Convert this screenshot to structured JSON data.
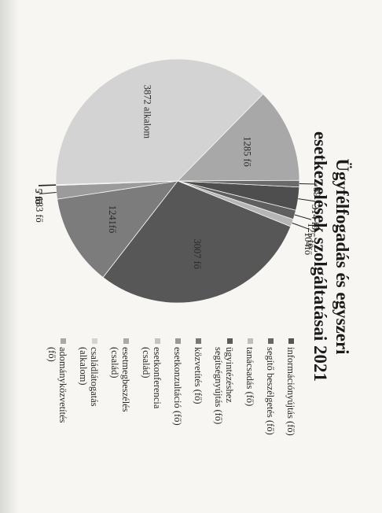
{
  "title": {
    "line1": "Ügyfélfogadás és egyszeri",
    "line2": "esetkezelések szolgáltatásai 2021"
  },
  "chart_data": {
    "type": "pie",
    "title": "Ügyfélfogadás és egyszeri esetkezelések szolgáltatásai 2021",
    "slices": [
      {
        "legend": "információnyújtás (fő)",
        "value": 314,
        "label": "314 fő",
        "color": "#4e4e4e"
      },
      {
        "legend": "segítő beszélgetés (fő)",
        "value": 125,
        "label": "125 fő",
        "color": "#5f5f5f"
      },
      {
        "legend": "tanácsadás (fő)",
        "value": 104,
        "label": "104fő",
        "color": "#b6b6b6"
      },
      {
        "legend": "ügyintézéshez segítségnyújtás (fő)",
        "value": 3007,
        "label": "3007 fő",
        "color": "#575757"
      },
      {
        "legend": "közvetítés (fő)",
        "value": 1241,
        "label": "1241fő",
        "color": "#7c7c7c"
      },
      {
        "legend": "esetkonzultáció (fő)",
        "value": 183,
        "label": "183 fő",
        "color": "#9b9b9b"
      },
      {
        "legend": "esetkonferencia (család)",
        "value": 7,
        "label": "7 fő",
        "color": "#c3c3c3"
      },
      {
        "legend": "esetmegbeszélés (család)",
        "value": 5,
        "label": "5 fő",
        "color": "#acacac"
      },
      {
        "legend": "családlátogatás (alkalom)",
        "value": 3872,
        "label": "3872 alkalom",
        "color": "#d3d3d3"
      },
      {
        "legend": "adományközvetítés (fő)",
        "value": 1285,
        "label": "1285 fő",
        "color": "#a8a8a8"
      },
      {
        "legend": "",
        "value": 89,
        "label": "89",
        "color": "#6a6a6a"
      }
    ],
    "legend_position": "right"
  },
  "legend_items": [
    {
      "lines": [
        "információnyújtás (fő)"
      ],
      "color": "#555555"
    },
    {
      "lines": [
        "segítő beszélgetés (fő)"
      ],
      "color": "#666666"
    },
    {
      "lines": [
        "tanácsadás (fő)"
      ],
      "color": "#bdbdbd"
    },
    {
      "lines": [
        "ügyintézéshez",
        "segítségnyújtás (fő)"
      ],
      "color": "#5a5a5a"
    },
    {
      "lines": [
        "közvetítés (fő)"
      ],
      "color": "#777777"
    },
    {
      "lines": [
        "esetkonzultáció (fő)"
      ],
      "color": "#999999"
    },
    {
      "lines": [
        "esetkonferencia",
        "(család)"
      ],
      "color": "#c3c3c3"
    },
    {
      "lines": [
        "esetmegbeszélés",
        "(család)"
      ],
      "color": "#aaaaaa"
    },
    {
      "lines": [
        "családlátogatás",
        "(alkalom)"
      ],
      "color": "#d3d3d3"
    },
    {
      "lines": [
        "adományközvetítés",
        "(fő)"
      ],
      "color": "#a8a8a8"
    }
  ]
}
